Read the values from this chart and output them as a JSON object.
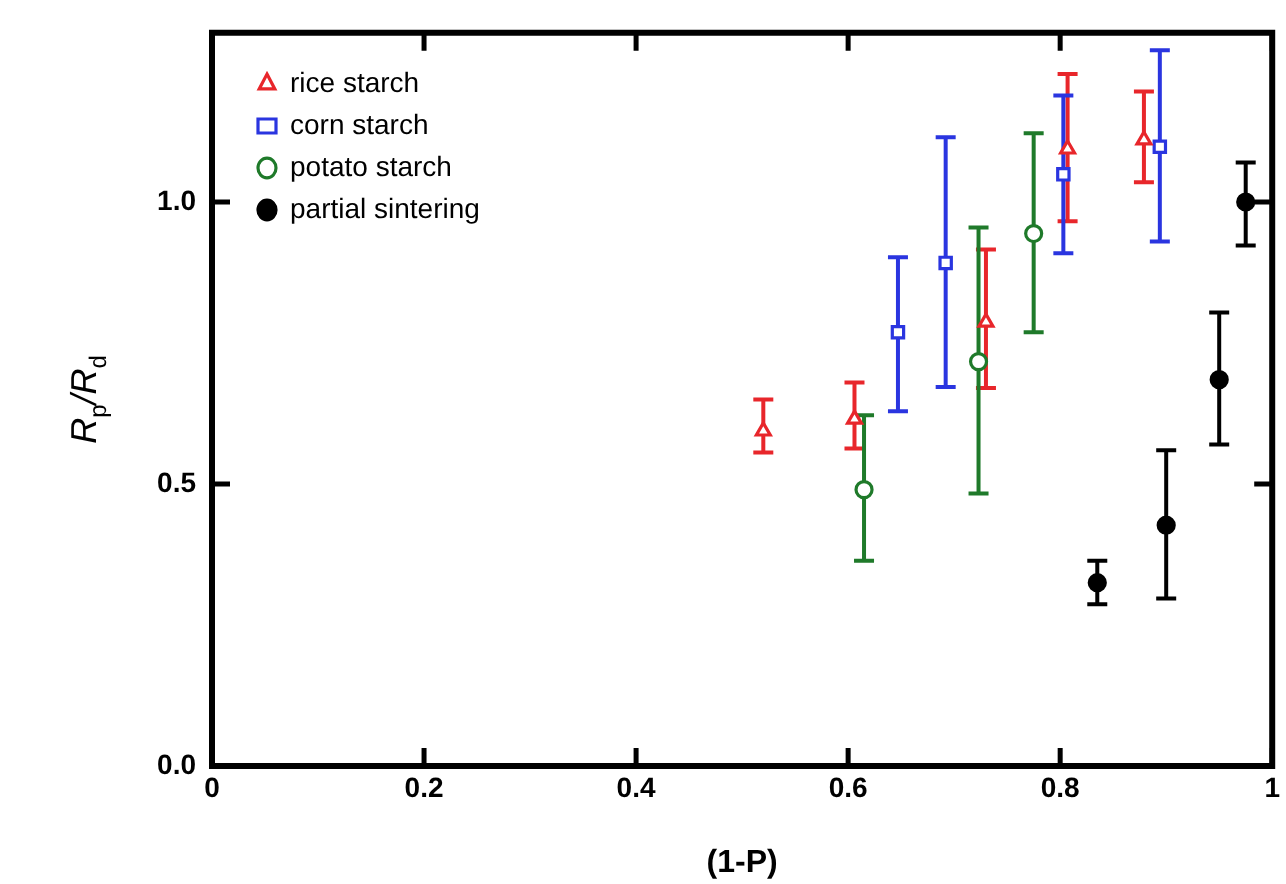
{
  "chart_data": {
    "type": "scatter",
    "xlabel": "(1-P)",
    "ylabel": "R$_{p}$/R$_{d}$",
    "xlim": [
      0,
      1
    ],
    "xticks": [
      0,
      0.2,
      0.4,
      0.6,
      0.8,
      1
    ],
    "ylim": [
      0,
      1.3
    ],
    "yticks": [
      {
        "value": 0,
        "label": "0.0"
      },
      0.5,
      {
        "value": 1,
        "label": "1.0"
      }
    ],
    "grid": false,
    "legend": "top left",
    "series": [
      {
        "name": "rice starch",
        "color": "#e8262b",
        "marker": "triangle",
        "x": [
          0.52,
          0.606,
          0.73,
          0.807,
          0.879
        ],
        "values": [
          0.594,
          0.615,
          0.787,
          1.094,
          1.11
        ],
        "errors": [
          [
            0.556,
            0.65
          ],
          [
            0.563,
            0.68
          ],
          [
            0.67,
            0.916
          ],
          [
            0.966,
            1.227
          ],
          [
            1.035,
            1.196
          ]
        ]
      },
      {
        "name": "corn starch",
        "color": "#2a35e0",
        "marker": "square",
        "x": [
          0.647,
          0.692,
          0.803,
          0.894
        ],
        "values": [
          0.769,
          0.892,
          1.049,
          1.098
        ],
        "errors": [
          [
            0.629,
            0.902
          ],
          [
            0.672,
            1.115
          ],
          [
            0.909,
            1.189
          ],
          [
            0.93,
            1.269
          ]
        ]
      },
      {
        "name": "potato starch",
        "color": "#1f7a2a",
        "marker": "circle",
        "x": [
          0.615,
          0.723,
          0.775
        ],
        "values": [
          0.49,
          0.717,
          0.944
        ],
        "errors": [
          [
            0.364,
            0.622
          ],
          [
            0.483,
            0.955
          ],
          [
            0.769,
            1.122
          ]
        ]
      },
      {
        "name": "partial sintering",
        "color": "#000000",
        "marker": "circle",
        "x": [
          0.835,
          0.9,
          0.95,
          0.975
        ],
        "values": [
          0.325,
          0.427,
          0.685,
          1.0
        ],
        "errors": [
          [
            0.287,
            0.364
          ],
          [
            0.297,
            0.56
          ],
          [
            0.57,
            0.804
          ],
          [
            0.923,
            1.07
          ]
        ]
      }
    ]
  }
}
